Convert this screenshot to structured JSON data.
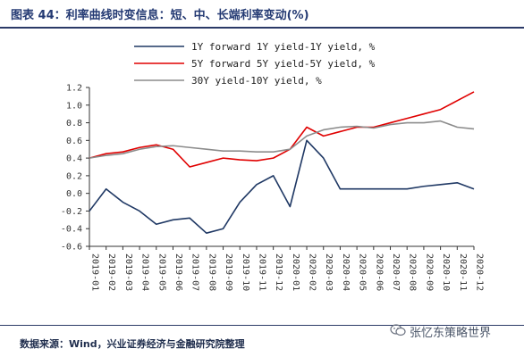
{
  "header": {
    "title": "图表 44：利率曲线时变信息：短、中、长端利率变动(%)"
  },
  "footer": {
    "source": "数据来源：Wind，兴业证券经济与金融研究院整理"
  },
  "watermark": {
    "text": "张忆东策略世界",
    "icon": "wechat-icon"
  },
  "chart_data": {
    "type": "line",
    "x": [
      "2019-01",
      "2019-02",
      "2019-03",
      "2019-04",
      "2019-05",
      "2019-06",
      "2019-07",
      "2019-08",
      "2019-09",
      "2019-10",
      "2019-11",
      "2019-12",
      "2020-01",
      "2020-02",
      "2020-03",
      "2020-04",
      "2020-05",
      "2020-06",
      "2020-07",
      "2020-08",
      "2020-09",
      "2020-10",
      "2020-11",
      "2020-12"
    ],
    "x_ticks": [
      "2019-01",
      "2019-02",
      "2019-03",
      "2019-04",
      "2019-05",
      "2019-06",
      "2019-07",
      "2019-08",
      "2019-09",
      "2019-10",
      "2019-11",
      "2019-12",
      "2020-01",
      "2020-02",
      "2020-03",
      "2020-04",
      "2020-05",
      "2020-06",
      "2020-07",
      "2020-08",
      "2020-09",
      "2020-10",
      "2020-11",
      "2020-12"
    ],
    "ylim": [
      -0.6,
      1.2
    ],
    "y_ticks": [
      -0.6,
      -0.4,
      -0.2,
      0.0,
      0.2,
      0.4,
      0.6,
      0.8,
      1.0,
      1.2
    ],
    "legend_position": "top-center",
    "grid": false,
    "series": [
      {
        "name": "1Y forward 1Y yield-1Y yield, %",
        "color": "#1f3864",
        "values": [
          -0.2,
          0.05,
          -0.1,
          -0.2,
          -0.35,
          -0.3,
          -0.28,
          -0.45,
          -0.4,
          -0.1,
          0.1,
          0.2,
          -0.15,
          0.6,
          0.4,
          0.05,
          0.05,
          0.05,
          0.05,
          0.05,
          0.08,
          0.1,
          0.12,
          0.05
        ]
      },
      {
        "name": "5Y forward 5Y yield-5Y yield, %",
        "color": "#e00000",
        "values": [
          0.4,
          0.45,
          0.47,
          0.52,
          0.55,
          0.5,
          0.3,
          0.35,
          0.4,
          0.38,
          0.37,
          0.4,
          0.5,
          0.75,
          0.65,
          0.7,
          0.75,
          0.75,
          0.8,
          0.85,
          0.9,
          0.95,
          1.05,
          1.15
        ]
      },
      {
        "name": "30Y yield-10Y yield, %",
        "color": "#8c8c8c",
        "values": [
          0.4,
          0.43,
          0.45,
          0.5,
          0.53,
          0.54,
          0.52,
          0.5,
          0.48,
          0.48,
          0.47,
          0.47,
          0.5,
          0.65,
          0.72,
          0.75,
          0.76,
          0.74,
          0.78,
          0.8,
          0.8,
          0.82,
          0.75,
          0.73
        ]
      }
    ]
  }
}
